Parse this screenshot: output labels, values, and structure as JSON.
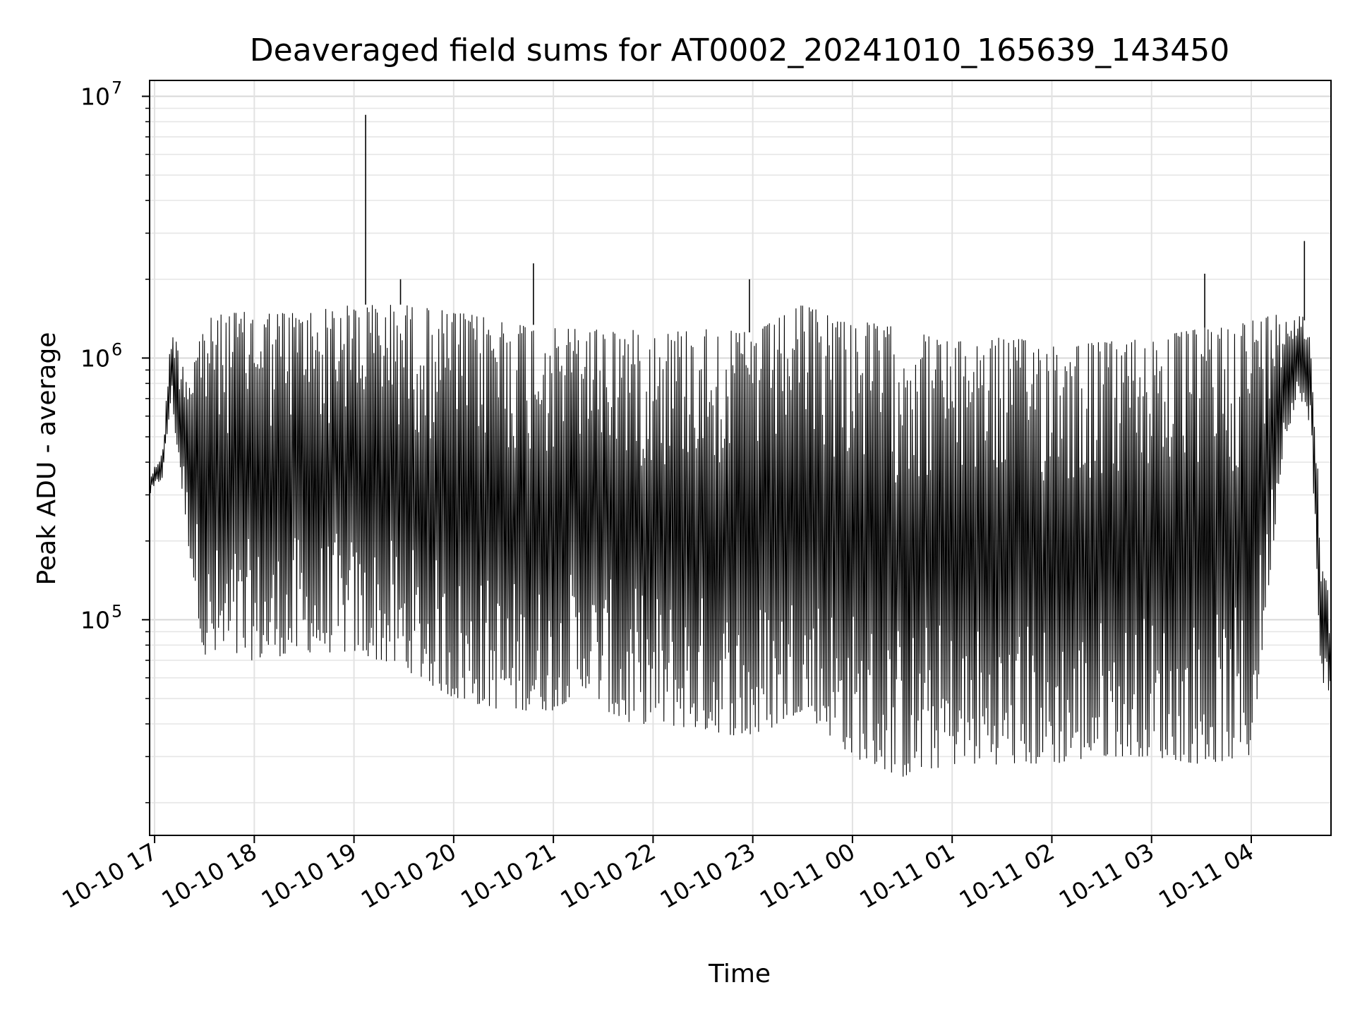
{
  "chart_data": {
    "type": "line",
    "title": "Deaveraged field sums for AT0002_20241010_165639_143450",
    "xlabel": "Time",
    "ylabel": "Peak ADU - average",
    "yscale": "log",
    "ylim": [
      15000,
      11500000
    ],
    "xlim": [
      "2024-10-10T16:57",
      "2024-10-11T04:48"
    ],
    "grid": true,
    "line_color": "#000000",
    "x_ticks": [
      "10-10 17",
      "10-10 18",
      "10-10 19",
      "10-10 20",
      "10-10 21",
      "10-10 22",
      "10-10 23",
      "10-11 00",
      "10-11 01",
      "10-11 02",
      "10-11 03",
      "10-11 04"
    ],
    "y_ticks": [
      {
        "value": 100000,
        "base": "10",
        "exp": "5"
      },
      {
        "value": 1000000,
        "base": "10",
        "exp": "6"
      },
      {
        "value": 10000000,
        "base": "10",
        "exp": "7"
      }
    ],
    "series": [
      {
        "sample_interval_minutes": 0.5,
        "envelope_x": [
          "2024-10-10T16:57",
          "2024-10-10T17:05",
          "2024-10-10T17:10",
          "2024-10-10T17:20",
          "2024-10-10T17:30",
          "2024-10-10T17:45",
          "2024-10-10T18:00",
          "2024-10-10T18:30",
          "2024-10-10T19:00",
          "2024-10-10T19:30",
          "2024-10-10T20:00",
          "2024-10-10T20:30",
          "2024-10-10T21:00",
          "2024-10-10T21:20",
          "2024-10-10T21:40",
          "2024-10-10T22:00",
          "2024-10-10T22:30",
          "2024-10-10T23:00",
          "2024-10-10T23:30",
          "2024-10-11T00:00",
          "2024-10-11T00:30",
          "2024-10-11T01:00",
          "2024-10-11T01:30",
          "2024-10-11T02:00",
          "2024-10-11T02:30",
          "2024-10-11T03:00",
          "2024-10-11T03:30",
          "2024-10-11T04:00",
          "2024-10-11T04:20",
          "2024-10-11T04:30",
          "2024-10-11T04:36",
          "2024-10-11T04:42",
          "2024-10-11T04:48"
        ],
        "upper": [
          350000,
          450000,
          1300000,
          900000,
          1400000,
          1500000,
          1500000,
          1500000,
          1600000,
          1600000,
          1500000,
          1400000,
          1300000,
          1300000,
          1300000,
          1250000,
          1300000,
          1250000,
          1600000,
          1400000,
          1300000,
          1150000,
          1200000,
          1150000,
          1150000,
          1200000,
          1300000,
          1400000,
          1500000,
          1500000,
          1200000,
          220000,
          100000
        ],
        "lower": [
          300000,
          350000,
          700000,
          200000,
          70000,
          70000,
          70000,
          75000,
          75000,
          65000,
          50000,
          45000,
          45000,
          55000,
          40000,
          40000,
          38000,
          35000,
          45000,
          30000,
          25000,
          28000,
          28000,
          28000,
          30000,
          30000,
          28000,
          30000,
          500000,
          700000,
          500000,
          60000,
          50000
        ],
        "spikes": [
          {
            "x": "2024-10-10T19:07",
            "y": 8500000
          },
          {
            "x": "2024-10-10T20:48",
            "y": 2300000
          },
          {
            "x": "2024-10-11T03:32",
            "y": 2100000
          },
          {
            "x": "2024-10-11T04:32",
            "y": 2800000
          },
          {
            "x": "2024-10-10T19:28",
            "y": 2000000
          },
          {
            "x": "2024-10-10T22:58",
            "y": 2000000
          }
        ]
      }
    ]
  }
}
